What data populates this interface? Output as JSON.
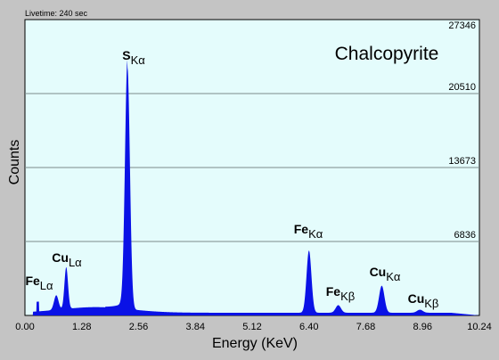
{
  "livetime": "Livetime: 240 sec",
  "colors": {
    "plot_background": "#e4fcfc",
    "spectrum": "#0a12e6",
    "frame_background": "#c4c4c4",
    "gridline": "#7c8a8a"
  },
  "chart_data": {
    "type": "area",
    "title": "Chalcopyrite",
    "xlabel": "Energy (KeV)",
    "ylabel": "Counts",
    "xlim": [
      0.0,
      10.24
    ],
    "ylim": [
      0,
      27346
    ],
    "x_ticks": [
      "0.00",
      "1.28",
      "2.56",
      "3.84",
      "5.12",
      "6.40",
      "7.68",
      "8.96",
      "10.24"
    ],
    "x_tick_values": [
      0.0,
      1.28,
      2.56,
      3.84,
      5.12,
      6.4,
      7.68,
      8.96,
      10.24
    ],
    "y_ticks": [
      "6836",
      "13673",
      "20510",
      "27346"
    ],
    "y_tick_values": [
      6836,
      13673,
      20510,
      27346
    ],
    "grid": "horizontal",
    "baseline": 250,
    "peaks": [
      {
        "element": "Fe",
        "line": "Lα",
        "energy": 0.705,
        "counts": 1350,
        "width": 0.05
      },
      {
        "element": "Cu",
        "line": "Lα",
        "energy": 0.93,
        "counts": 3850,
        "width": 0.04
      },
      {
        "element": "S",
        "line": "Kα",
        "energy": 2.31,
        "counts": 22300,
        "width": 0.055
      },
      {
        "element": "Fe",
        "line": "Kα",
        "energy": 6.4,
        "counts": 5750,
        "width": 0.055
      },
      {
        "element": "Fe",
        "line": "Kβ",
        "energy": 7.06,
        "counts": 700,
        "width": 0.06
      },
      {
        "element": "Cu",
        "line": "Kα",
        "energy": 8.04,
        "counts": 2500,
        "width": 0.06
      },
      {
        "element": "Cu",
        "line": "Kβ",
        "energy": 8.9,
        "counts": 280,
        "width": 0.065
      }
    ],
    "labels": [
      {
        "symbol": "Fe",
        "sub": "Lα"
      },
      {
        "symbol": "Cu",
        "sub": "Lα"
      },
      {
        "symbol": "S",
        "sub": "Kα"
      },
      {
        "symbol": "Fe",
        "sub": "Kα"
      },
      {
        "symbol": "Fe",
        "sub": "Kβ"
      },
      {
        "symbol": "Cu",
        "sub": "Kα"
      },
      {
        "symbol": "Cu",
        "sub": "Kβ"
      }
    ]
  }
}
